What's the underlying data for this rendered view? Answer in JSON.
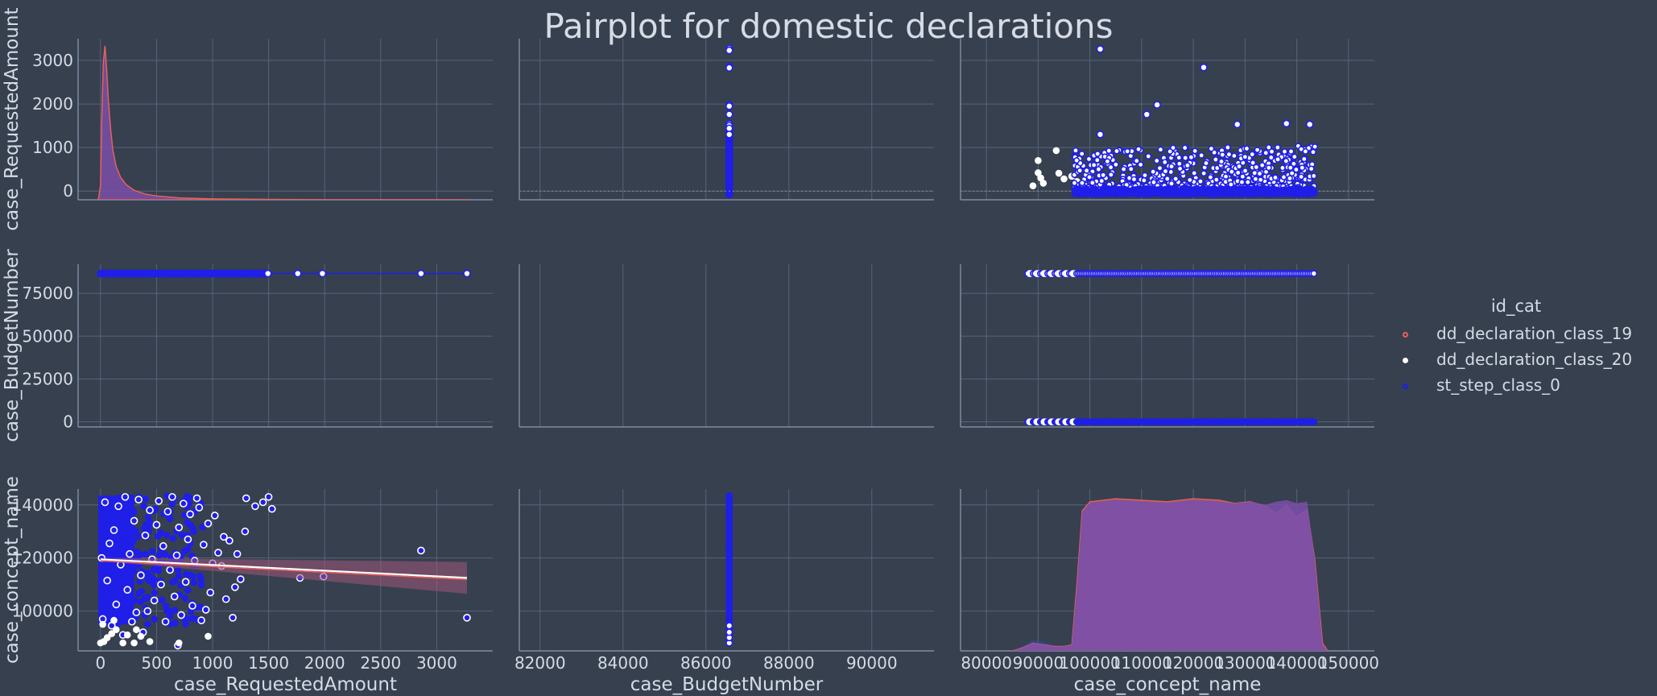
{
  "figure": {
    "title": "Pairplot for domestic declarations",
    "background": "#36404f",
    "grid_color": "#56637a",
    "axis_color": "#8e9ab0",
    "text_color": "#d6dbe5"
  },
  "legend": {
    "title": "id_cat",
    "placement": "right",
    "entries": [
      {
        "label": "dd_declaration_class_19",
        "color": "#e8605c",
        "fill": "#ffffff"
      },
      {
        "label": "dd_declaration_class_20",
        "color": "#ffffff",
        "fill": "#ffffff"
      },
      {
        "label": "st_step_class_0",
        "color": "#1f1fe8",
        "fill": "#ffffff"
      }
    ]
  },
  "chart_data": {
    "type": "scatter",
    "kind": "pairplot",
    "grid": true,
    "variables": [
      "case_RequestedAmount",
      "case_BudgetNumber",
      "case_concept_name"
    ],
    "row_labels": [
      "case_RequestedAmount",
      "case_BudgetNumber",
      "case_concept_name"
    ],
    "col_labels": [
      "case_RequestedAmount",
      "case_BudgetNumber",
      "case_concept_name"
    ],
    "ranges": {
      "case_RequestedAmount": [
        -200,
        3500
      ],
      "case_BudgetNumber_row": [
        -3000,
        92000
      ],
      "case_BudgetNumber_col": [
        81500,
        91500
      ],
      "case_concept_name": [
        85000,
        146000
      ],
      "case_concept_name_col": [
        75000,
        155000
      ]
    },
    "ticks": {
      "row0": [
        0,
        1000,
        2000,
        3000
      ],
      "row1": [
        0,
        25000,
        50000,
        75000
      ],
      "row2": [
        100000,
        120000,
        140000
      ],
      "col0": [
        0,
        500,
        1000,
        1500,
        2000,
        2500,
        3000
      ],
      "col1": [
        82000,
        84000,
        86000,
        88000,
        90000
      ],
      "col2": [
        80000,
        90000,
        100000,
        110000,
        120000,
        130000,
        140000,
        150000
      ]
    },
    "series": [
      {
        "name": "st_step_class_0",
        "budget_number": 86563,
        "requested_amount_outliers": [
          3270,
          3230,
          2860,
          2830,
          1980,
          1950,
          1760,
          1540,
          1500,
          1440,
          1300
        ],
        "concept_range": [
          88000,
          143500
        ]
      },
      {
        "name": "dd_declaration_class_20",
        "concept_range": [
          88000,
          97000
        ]
      },
      {
        "name": "dd_declaration_class_19",
        "concept_range": [
          88000,
          143500
        ]
      }
    ],
    "concept_vs_amount": [
      [
        3270,
        97500
      ],
      [
        2860,
        122800
      ],
      [
        1990,
        113000
      ],
      [
        1780,
        112500
      ],
      [
        1530,
        138500
      ],
      [
        1500,
        143000
      ],
      [
        1450,
        141000
      ],
      [
        1380,
        139500
      ],
      [
        1300,
        142500
      ],
      [
        1290,
        130000
      ],
      [
        1250,
        112000
      ],
      [
        1220,
        121500
      ],
      [
        1200,
        109000
      ],
      [
        1180,
        97500
      ],
      [
        1150,
        126500
      ],
      [
        1120,
        104500
      ],
      [
        1100,
        128000
      ],
      [
        1080,
        117000
      ],
      [
        1050,
        122000
      ],
      [
        1020,
        136000
      ],
      [
        1000,
        118000
      ],
      [
        980,
        107000
      ],
      [
        960,
        133000
      ],
      [
        940,
        100500
      ],
      [
        920,
        125000
      ],
      [
        900,
        96500
      ],
      [
        880,
        139000
      ],
      [
        860,
        142500
      ],
      [
        840,
        119000
      ],
      [
        820,
        102000
      ],
      [
        800,
        136500
      ],
      [
        780,
        127000
      ],
      [
        760,
        111000
      ],
      [
        740,
        140500
      ],
      [
        720,
        98500
      ],
      [
        700,
        131500
      ],
      [
        690,
        87000
      ],
      [
        680,
        121000
      ],
      [
        660,
        105500
      ],
      [
        640,
        143000
      ],
      [
        620,
        115500
      ],
      [
        600,
        137500
      ],
      [
        580,
        96000
      ],
      [
        560,
        124500
      ],
      [
        540,
        110000
      ],
      [
        520,
        141500
      ],
      [
        500,
        132500
      ],
      [
        480,
        104000
      ],
      [
        460,
        119500
      ],
      [
        440,
        138000
      ],
      [
        420,
        100000
      ],
      [
        400,
        128500
      ],
      [
        380,
        92000
      ],
      [
        360,
        113500
      ],
      [
        340,
        142000
      ],
      [
        320,
        99500
      ],
      [
        300,
        134000
      ],
      [
        280,
        96000
      ],
      [
        260,
        121500
      ],
      [
        240,
        108000
      ],
      [
        220,
        143000
      ],
      [
        200,
        91000
      ],
      [
        180,
        117500
      ],
      [
        160,
        139500
      ],
      [
        140,
        102500
      ],
      [
        120,
        130500
      ],
      [
        100,
        94500
      ],
      [
        80,
        125500
      ],
      [
        60,
        111500
      ],
      [
        40,
        141000
      ],
      [
        20,
        97000
      ],
      [
        10,
        120000
      ]
    ],
    "dd20_points": [
      [
        0,
        88000
      ],
      [
        30,
        88500
      ],
      [
        60,
        90000
      ],
      [
        100,
        91500
      ],
      [
        140,
        93000
      ],
      [
        200,
        88000
      ],
      [
        240,
        91000
      ],
      [
        300,
        88000
      ],
      [
        320,
        93000
      ],
      [
        360,
        90500
      ],
      [
        440,
        88500
      ],
      [
        700,
        88000
      ],
      [
        960,
        90500
      ],
      [
        20,
        95000
      ],
      [
        120,
        96500
      ]
    ],
    "concept_grid_x_requested_vs_concept": [
      [
        90000,
        700
      ],
      [
        90000,
        420
      ],
      [
        90500,
        300
      ],
      [
        91000,
        180
      ],
      [
        89000,
        120
      ],
      [
        93500,
        930
      ],
      [
        94000,
        410
      ],
      [
        95000,
        280
      ],
      [
        96500,
        340
      ],
      [
        97500,
        220
      ],
      [
        99000,
        150
      ]
    ],
    "regression": {
      "x": [
        0,
        3270
      ],
      "y": [
        119500,
        112500
      ],
      "ci_lower_end": 106500,
      "ci_upper_end": 118500
    },
    "kde_requested_amount": {
      "x": [
        -20,
        0,
        10,
        25,
        40,
        55,
        70,
        90,
        110,
        140,
        180,
        230,
        300,
        400,
        500,
        700,
        1000,
        1500,
        2000,
        3300
      ],
      "y": [
        0,
        300,
        1600,
        2900,
        3250,
        2750,
        2100,
        1500,
        1050,
        700,
        470,
        320,
        200,
        120,
        80,
        40,
        20,
        8,
        3,
        0
      ]
    },
    "kde_concept_name": {
      "x": [
        85000,
        87000,
        89000,
        91000,
        93000,
        95000,
        96500,
        97500,
        98500,
        100000,
        105000,
        110000,
        115000,
        120000,
        125000,
        128000,
        131000,
        134000,
        136000,
        138000,
        140000,
        142000,
        143500,
        145000,
        146000
      ],
      "series": [
        {
          "name": "dd_declaration_class_19",
          "y": [
            0,
            2,
            5,
            4,
            3,
            3,
            4,
            45,
            92,
            98,
            100,
            99,
            98,
            100,
            99,
            97,
            98,
            95,
            90,
            96,
            88,
            93,
            60,
            5,
            0
          ]
        },
        {
          "name": "dd_declaration_class_20",
          "y": [
            0,
            3,
            7,
            6,
            4,
            3,
            3,
            40,
            90,
            96,
            98,
            97,
            96,
            98,
            97,
            96,
            97,
            95,
            93,
            97,
            92,
            95,
            58,
            4,
            0
          ]
        },
        {
          "name": "st_step_class_0",
          "y": [
            0,
            2,
            5,
            4,
            3,
            3,
            4,
            44,
            91,
            97,
            99,
            98,
            97,
            99,
            98,
            97,
            98,
            96,
            98,
            99,
            97,
            98,
            60,
            4,
            0
          ]
        }
      ]
    }
  }
}
